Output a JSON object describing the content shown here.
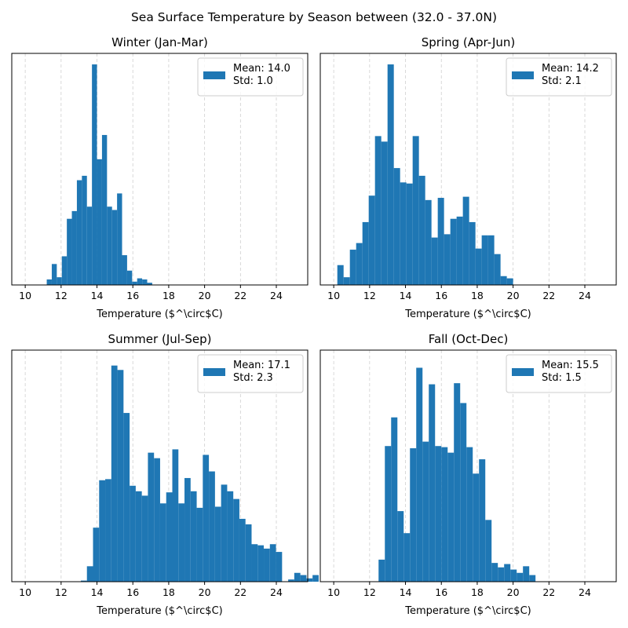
{
  "suptitle": "Sea Surface Temperature by Season between (32.0 - 37.0N)",
  "colors": {
    "bar": "#1f77b4",
    "grid": "#b0b0b0",
    "axis": "#000000"
  },
  "chart_data": [
    {
      "type": "bar",
      "title": "Winter (Jan-Mar)",
      "xlabel": "Temperature ($^\\circ$C)",
      "xlim": [
        9.25,
        25.75
      ],
      "ylim": [
        0,
        1.05
      ],
      "xticks": [
        10,
        12,
        14,
        16,
        18,
        20,
        22,
        24
      ],
      "grid": "x-dashed",
      "legend": {
        "placement": "upper right",
        "mean": "Mean: 14.0",
        "std": "Std: 1.0"
      },
      "bin_start": 11.2,
      "bin_width": 0.28,
      "values": [
        0.025,
        0.095,
        0.035,
        0.13,
        0.3,
        0.335,
        0.475,
        0.495,
        0.355,
        1.0,
        0.57,
        0.68,
        0.355,
        0.34,
        0.415,
        0.135,
        0.065,
        0.015,
        0.03,
        0.025,
        0.01
      ]
    },
    {
      "type": "bar",
      "title": "Spring (Apr-Jun)",
      "xlabel": "Temperature ($^\\circ$C)",
      "xlim": [
        9.25,
        25.75
      ],
      "ylim": [
        0,
        1.05
      ],
      "xticks": [
        10,
        12,
        14,
        16,
        18,
        20,
        22,
        24
      ],
      "grid": "x-dashed",
      "legend": {
        "placement": "upper right",
        "mean": "Mean: 14.2",
        "std": "Std: 2.1"
      },
      "bin_start": 10.2,
      "bin_width": 0.35,
      "values": [
        0.09,
        0.035,
        0.16,
        0.19,
        0.285,
        0.405,
        0.675,
        0.65,
        1.0,
        0.53,
        0.465,
        0.46,
        0.675,
        0.495,
        0.385,
        0.215,
        0.395,
        0.23,
        0.3,
        0.31,
        0.4,
        0.285,
        0.165,
        0.225,
        0.225,
        0.14,
        0.04,
        0.03
      ]
    },
    {
      "type": "bar",
      "title": "Summer (Jul-Sep)",
      "xlabel": "Temperature ($^\\circ$C)",
      "xlim": [
        9.25,
        25.75
      ],
      "ylim": [
        0,
        1.05
      ],
      "xticks": [
        10,
        12,
        14,
        16,
        18,
        20,
        22,
        24
      ],
      "grid": "x-dashed",
      "legend": {
        "placement": "upper right",
        "mean": "Mean: 17.1",
        "std": "Std: 2.3"
      },
      "bin_start": 13.1,
      "bin_width": 0.34,
      "values": [
        0.005,
        0.07,
        0.245,
        0.46,
        0.465,
        0.98,
        0.96,
        0.765,
        0.435,
        0.41,
        0.39,
        0.585,
        0.56,
        0.355,
        0.405,
        0.6,
        0.355,
        0.47,
        0.41,
        0.335,
        0.575,
        0.5,
        0.34,
        0.44,
        0.41,
        0.375,
        0.285,
        0.26,
        0.17,
        0.165,
        0.15,
        0.17,
        0.135,
        0.0,
        0.01,
        0.04,
        0.03,
        0.015,
        0.03
      ]
    },
    {
      "type": "bar",
      "title": "Fall (Oct-Dec)",
      "xlabel": "Temperature ($^\\circ$C)",
      "xlim": [
        9.25,
        25.75
      ],
      "ylim": [
        0,
        1.05
      ],
      "xticks": [
        10,
        12,
        14,
        16,
        18,
        20,
        22,
        24
      ],
      "grid": "x-dashed",
      "legend": {
        "placement": "upper right",
        "mean": "Mean: 15.5",
        "std": "Std: 1.5"
      },
      "bin_start": 12.5,
      "bin_width": 0.35,
      "values": [
        0.1,
        0.615,
        0.745,
        0.32,
        0.22,
        0.605,
        0.97,
        0.635,
        0.895,
        0.615,
        0.61,
        0.585,
        0.9,
        0.81,
        0.61,
        0.49,
        0.555,
        0.28,
        0.085,
        0.065,
        0.08,
        0.055,
        0.04,
        0.07,
        0.03
      ]
    }
  ]
}
